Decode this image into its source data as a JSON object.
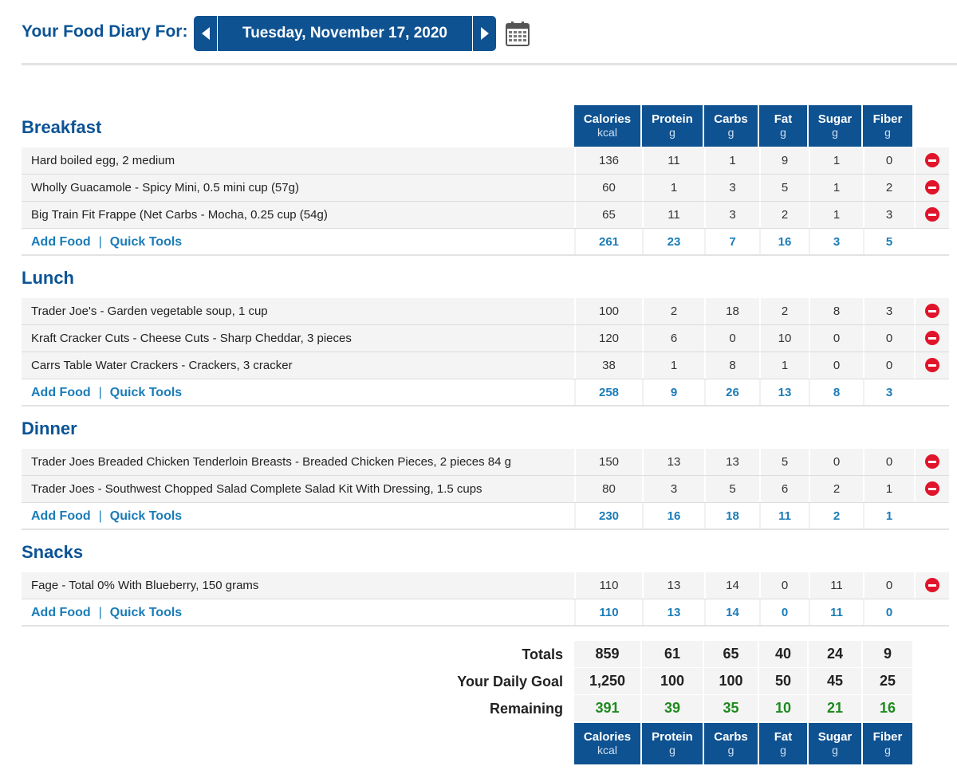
{
  "header": {
    "title": "Your Food Diary For:",
    "date": "Tuesday, November 17, 2020"
  },
  "columns": [
    {
      "name": "Calories",
      "unit": "kcal"
    },
    {
      "name": "Protein",
      "unit": "g"
    },
    {
      "name": "Carbs",
      "unit": "g"
    },
    {
      "name": "Fat",
      "unit": "g"
    },
    {
      "name": "Sugar",
      "unit": "g"
    },
    {
      "name": "Fiber",
      "unit": "g"
    }
  ],
  "links": {
    "add_food": "Add Food",
    "quick_tools": "Quick Tools",
    "sep": "|"
  },
  "meals": [
    {
      "title": "Breakfast",
      "items": [
        {
          "name": "Hard boiled egg, 2 medium",
          "values": [
            "136",
            "11",
            "1",
            "9",
            "1",
            "0"
          ]
        },
        {
          "name": "Wholly Guacamole - Spicy Mini, 0.5 mini cup (57g)",
          "values": [
            "60",
            "1",
            "3",
            "5",
            "1",
            "2"
          ]
        },
        {
          "name": "Big Train Fit Frappe (Net Carbs - Mocha, 0.25 cup (54g)",
          "values": [
            "65",
            "11",
            "3",
            "2",
            "1",
            "3"
          ]
        }
      ],
      "totals": [
        "261",
        "23",
        "7",
        "16",
        "3",
        "5"
      ]
    },
    {
      "title": "Lunch",
      "items": [
        {
          "name": "Trader Joe's - Garden vegetable soup, 1 cup",
          "values": [
            "100",
            "2",
            "18",
            "2",
            "8",
            "3"
          ]
        },
        {
          "name": "Kraft Cracker Cuts - Cheese Cuts - Sharp Cheddar, 3 pieces",
          "values": [
            "120",
            "6",
            "0",
            "10",
            "0",
            "0"
          ]
        },
        {
          "name": "Carrs Table Water Crackers - Crackers, 3 cracker",
          "values": [
            "38",
            "1",
            "8",
            "1",
            "0",
            "0"
          ]
        }
      ],
      "totals": [
        "258",
        "9",
        "26",
        "13",
        "8",
        "3"
      ]
    },
    {
      "title": "Dinner",
      "items": [
        {
          "name": "Trader Joes Breaded Chicken Tenderloin Breasts - Breaded Chicken Pieces, 2 pieces 84 g",
          "values": [
            "150",
            "13",
            "13",
            "5",
            "0",
            "0"
          ]
        },
        {
          "name": "Trader Joes - Southwest Chopped Salad Complete Salad Kit With Dressing, 1.5 cups",
          "values": [
            "80",
            "3",
            "5",
            "6",
            "2",
            "1"
          ]
        }
      ],
      "totals": [
        "230",
        "16",
        "18",
        "11",
        "2",
        "1"
      ]
    },
    {
      "title": "Snacks",
      "items": [
        {
          "name": "Fage - Total 0% With Blueberry, 150 grams",
          "values": [
            "110",
            "13",
            "14",
            "0",
            "11",
            "0"
          ]
        }
      ],
      "totals": [
        "110",
        "13",
        "14",
        "0",
        "11",
        "0"
      ]
    }
  ],
  "summary": {
    "totals": {
      "label": "Totals",
      "values": [
        "859",
        "61",
        "65",
        "40",
        "24",
        "9"
      ]
    },
    "goal": {
      "label": "Your Daily Goal",
      "values": [
        "1,250",
        "100",
        "100",
        "50",
        "45",
        "25"
      ]
    },
    "remaining": {
      "label": "Remaining",
      "values": [
        "391",
        "39",
        "35",
        "10",
        "21",
        "16"
      ]
    }
  },
  "colors": {
    "brand": "#0f5291",
    "link": "#1a7cb8",
    "delete": "#e0142a",
    "remaining": "#1f8a1f"
  },
  "icons": {
    "prev": "caret-left-icon",
    "next": "caret-right-icon",
    "calendar": "calendar-icon",
    "delete": "remove-circle-icon"
  }
}
